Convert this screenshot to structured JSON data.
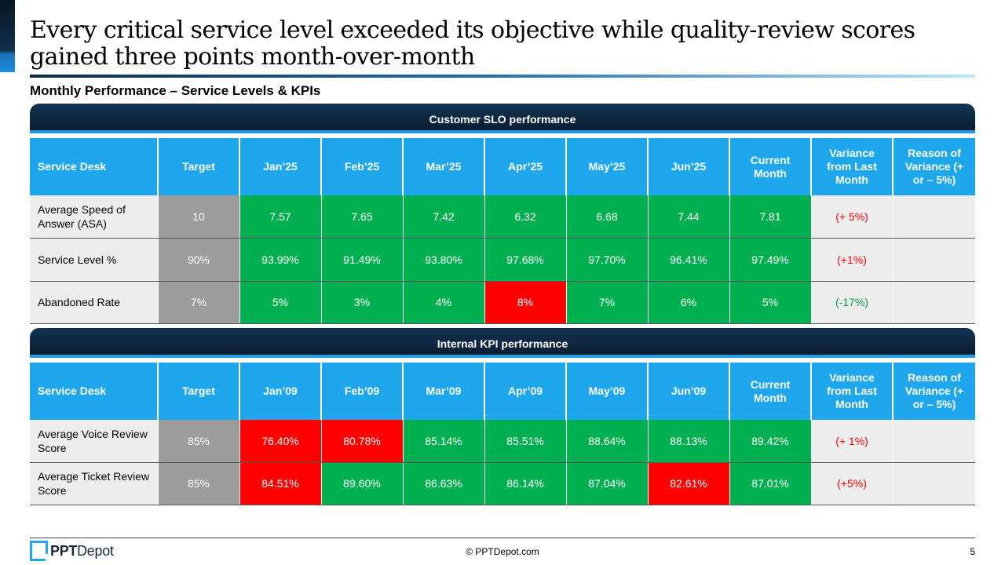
{
  "slide": {
    "title": "Every critical service level exceeded its objective while quality-review scores gained three points month-over-month",
    "subtitle": "Monthly Performance – Service Levels & KPIs",
    "page_number": "5"
  },
  "footer": {
    "logo_bold": "PPT",
    "logo_rest": "Depot",
    "copyright": "© PPTDepot.com"
  },
  "slo": {
    "band": "Customer SLO performance",
    "headers": [
      "Service Desk",
      "Target",
      "Jan’25",
      "Feb’25",
      "Mar’25",
      "Apr’25",
      "May’25",
      "Jun’25",
      "Current Month",
      "Variance from Last Month",
      "Reason of Variance (+ or – 5%)"
    ],
    "rows": [
      {
        "label": "Average Speed of Answer (ASA)",
        "target": "10",
        "values": [
          "7.57",
          "7.65",
          "7.42",
          "6.32",
          "6.68",
          "7.44",
          "7.81"
        ],
        "status": [
          "g",
          "g",
          "g",
          "g",
          "g",
          "g",
          "g"
        ],
        "variance": "(+ 5%)",
        "variance_dir": "pos",
        "reason": ""
      },
      {
        "label": "Service Level %",
        "target": "90%",
        "values": [
          "93.99%",
          "91.49%",
          "93.80%",
          "97.68%",
          "97.70%",
          "96.41%",
          "97.49%"
        ],
        "status": [
          "g",
          "g",
          "g",
          "g",
          "g",
          "g",
          "g"
        ],
        "variance": "(+1%)",
        "variance_dir": "pos",
        "reason": ""
      },
      {
        "label": "Abandoned Rate",
        "target": "7%",
        "values": [
          "5%",
          "3%",
          "4%",
          "8%",
          "7%",
          "6%",
          "5%"
        ],
        "status": [
          "g",
          "g",
          "g",
          "r",
          "g",
          "g",
          "g"
        ],
        "variance": "(-17%)",
        "variance_dir": "neg",
        "reason": ""
      }
    ]
  },
  "kpi": {
    "band": "Internal KPI performance",
    "headers": [
      "Service Desk",
      "Target",
      "Jan’09",
      "Feb’09",
      "Mar’09",
      "Apr’09",
      "May’09",
      "Jun’09",
      "Current Month",
      "Variance from Last Month",
      "Reason of Variance (+ or – 5%)"
    ],
    "rows": [
      {
        "label": "Average Voice Review Score",
        "target": "85%",
        "values": [
          "76.40%",
          "80.78%",
          "85.14%",
          "85.51%",
          "88.64%",
          "88.13%",
          "89.42%"
        ],
        "status": [
          "r",
          "r",
          "g",
          "g",
          "g",
          "g",
          "g"
        ],
        "variance": "(+ 1%)",
        "variance_dir": "pos",
        "reason": ""
      },
      {
        "label": "Average Ticket Review Score",
        "target": "85%",
        "values": [
          "84.51%",
          "89.60%",
          "86.63%",
          "86.14%",
          "87.04%",
          "82.61%",
          "87.01%"
        ],
        "status": [
          "r",
          "g",
          "g",
          "g",
          "g",
          "r",
          "g"
        ],
        "variance": "(+5%)",
        "variance_dir": "pos",
        "reason": ""
      }
    ]
  },
  "colors": {
    "header_blue": "#1ea7ec",
    "good": "#00b050",
    "bad": "#ff0000",
    "target_gray": "#9c9c9c",
    "band_dark": "#0a1a2c"
  }
}
